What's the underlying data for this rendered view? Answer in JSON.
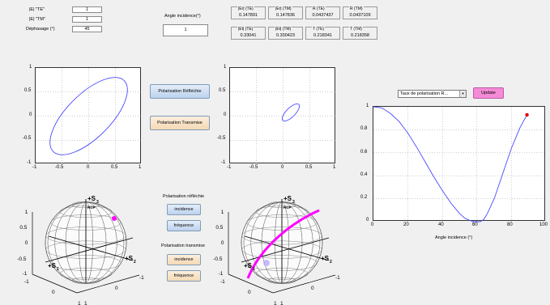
{
  "inputs": {
    "te_label": "|E| \"TE\"",
    "te_value": "1",
    "tm_label": "|E| \"TM\"",
    "tm_value": "1",
    "phase_label": "Déphasage (°)",
    "phase_value": "45",
    "angle_label": "Angle incidence(°)",
    "angle_value": "1"
  },
  "results": {
    "er_te": {
      "title": "|Er| (TE)",
      "value": "0.147891"
    },
    "er_tm": {
      "title": "|Er| (TM)",
      "value": "0.147836"
    },
    "r_te": {
      "title": "R (TE)",
      "value": "0.0437437"
    },
    "r_tm": {
      "title": "R (TM)",
      "value": "0.0437109"
    },
    "et_te": {
      "title": "|Et| (TE)",
      "value": "0.33041"
    },
    "et_tm": {
      "title": "|Et| (TM)",
      "value": "0.330423"
    },
    "t_te": {
      "title": "T (TE)",
      "value": "0.218341"
    },
    "t_tm": {
      "title": "T (TM)",
      "value": "0.218358"
    }
  },
  "buttons": {
    "pol_reflechie": "Polarisation Réfléchie",
    "pol_transmise": "Polarisation Transmise",
    "reflechie_section": "Polarisation réfléchie",
    "transmise_section": "Polarisation transmise",
    "incidence": "incidence",
    "frequence": "fréquence",
    "update": "Update"
  },
  "dropdown": {
    "selected": "Taux de polarisation R..."
  },
  "plots": {
    "ellipse_ticks_y": [
      "1",
      "0.5",
      "0",
      "-0.5",
      "-1"
    ],
    "ellipse_ticks_x": [
      "-1",
      "-0.5",
      "0",
      "0.5",
      "1"
    ]
  },
  "sphere": {
    "s1": "+S",
    "s1_sub": "1",
    "s2": "+S",
    "s2_sub": "2",
    "s3": "+S",
    "s3_sub": "3",
    "rcp": "RCP",
    "ticks_y": [
      "1",
      "0.5",
      "0",
      "-0.5",
      "-1"
    ],
    "ticks_x1": [
      "-1",
      "0",
      "1"
    ],
    "ticks_x2": [
      "1",
      "0",
      "-1"
    ]
  },
  "chart_data": {
    "type": "line",
    "title": "",
    "xlabel": "Angle incidence (°)",
    "ylabel": "",
    "xlim": [
      0,
      100
    ],
    "ylim": [
      0,
      1
    ],
    "xticks": [
      "0",
      "20",
      "40",
      "60",
      "80",
      "100"
    ],
    "yticks": [
      "1",
      "0.8",
      "0.6",
      "0.4",
      "0.2",
      "0"
    ],
    "series": [
      {
        "x": [
          0,
          5,
          10,
          15,
          20,
          25,
          30,
          35,
          40,
          45,
          50,
          53,
          56,
          58,
          60,
          62,
          64,
          66,
          70,
          75,
          80,
          85,
          89
        ],
        "y": [
          1.0,
          0.99,
          0.94,
          0.87,
          0.77,
          0.65,
          0.52,
          0.39,
          0.27,
          0.16,
          0.07,
          0.03,
          0.01,
          0.0,
          0.0,
          0.0,
          0.02,
          0.07,
          0.2,
          0.42,
          0.64,
          0.82,
          0.93
        ],
        "color": "#4a4aff"
      }
    ],
    "marker": {
      "x": 89,
      "y": 0.93,
      "color": "#e00000"
    },
    "grid": true
  },
  "colors": {
    "curve": "#4a4aff",
    "sphere_path": "#ff00ff",
    "marker": "#e00000"
  }
}
